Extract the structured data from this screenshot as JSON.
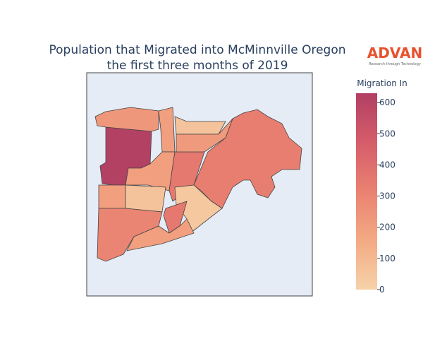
{
  "chart_data": {
    "type": "choropleth",
    "title": [
      "Population that Migrated into McMinnville Oregon",
      "the first three months of 2019"
    ],
    "colorbar_title": "Migration In",
    "logo": {
      "name": "ADVAN",
      "tagline": "Research through Technology"
    },
    "values": [
      620,
      230,
      60,
      200,
      200,
      350,
      330,
      220,
      200,
      60,
      40,
      350,
      300,
      200
    ],
    "zlim": [
      0,
      630
    ],
    "zticks": [
      0,
      100,
      200,
      300,
      400,
      500,
      600
    ],
    "colorscale": [
      "#f6d2a9",
      "#f3aa84",
      "#ea8171",
      "#d55d6a",
      "#b13f64"
    ]
  }
}
